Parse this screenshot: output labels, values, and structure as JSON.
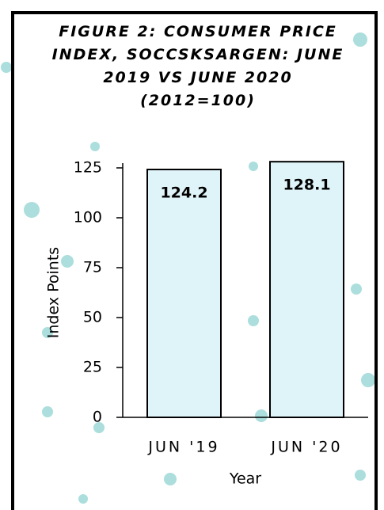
{
  "chart_data": {
    "type": "bar",
    "title": "FIGURE 2: CONSUMER PRICE INDEX, SOCCSKSARGEN: JUNE 2019 VS JUNE 2020 (2012=100)",
    "categories": [
      "JUN '19",
      "JUN '20"
    ],
    "values": [
      124.2,
      128.1
    ],
    "color": "#dff4f9",
    "xlabel": "Year",
    "ylabel": "Index Points",
    "ylim": [
      0,
      125
    ],
    "yticks": [
      0,
      25,
      50,
      75,
      100,
      125
    ]
  }
}
